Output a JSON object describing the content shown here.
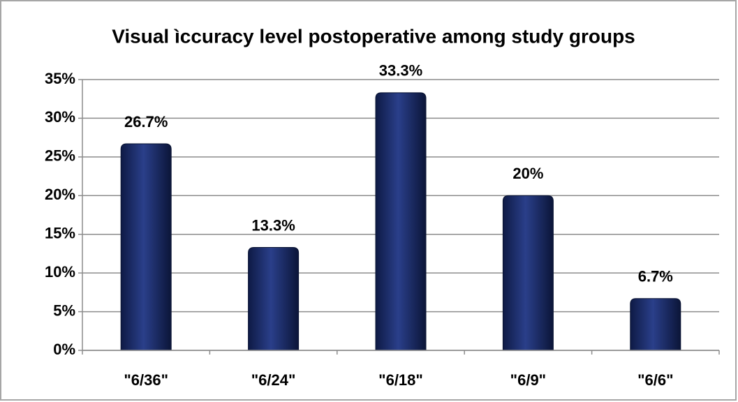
{
  "chart_data": {
    "type": "bar",
    "title": "Visual ìccuracy level postoperative among study groups",
    "categories": [
      "\"6/36\"",
      "\"6/24\"",
      "\"6/18\"",
      "\"6/9\"",
      "\"6/6\""
    ],
    "values": [
      26.7,
      13.3,
      33.3,
      20,
      6.7
    ],
    "value_labels": [
      "26.7%",
      "13.3%",
      "33.3%",
      "20%",
      "6.7%"
    ],
    "color": "#1f3170",
    "ylim": [
      0,
      35
    ],
    "yticks": [
      {
        "value": 0,
        "label": "0%"
      },
      {
        "value": 5,
        "label": "5%"
      },
      {
        "value": 10,
        "label": "10%"
      },
      {
        "value": 15,
        "label": "15%"
      },
      {
        "value": 20,
        "label": "20%"
      },
      {
        "value": 25,
        "label": "25%"
      },
      {
        "value": 30,
        "label": "30%"
      },
      {
        "value": 35,
        "label": "35%"
      }
    ],
    "grid": true
  }
}
